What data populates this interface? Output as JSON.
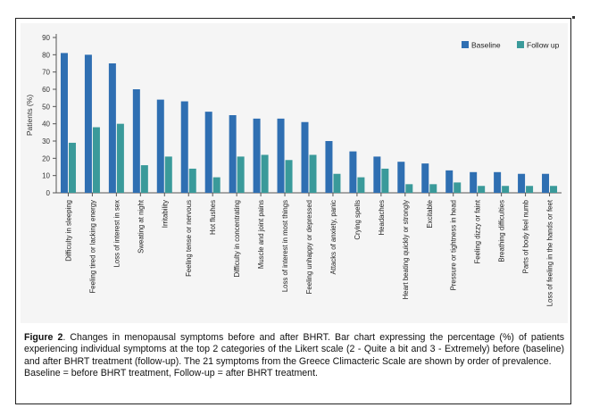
{
  "colors": {
    "baseline": "#2f6fb2",
    "follow_up": "#3a9a9a",
    "panel": "#f5f5f5"
  },
  "chart_data": {
    "type": "bar",
    "ylabel": "Patients (%)",
    "ylim": [
      0,
      90
    ],
    "yticks": [
      0,
      10,
      20,
      30,
      40,
      50,
      60,
      70,
      80,
      90
    ],
    "grid": false,
    "legend_position": "top-right",
    "categories": [
      "Difficulty in sleeping",
      "Feeling tired or lacking energy",
      "Loss of interest in sex",
      "Sweating at night",
      "Irritability",
      "Feeling tense or nervous",
      "Hot flushes",
      "Difficulty in concentrating",
      "Muscle and joint pains",
      "Loss of interest in most things",
      "Feeling unhappy or depressed",
      "Attacks of anxiety, panic",
      "Crying spells",
      "Headaches",
      "Heart beating quickly or strongly",
      "Excitable",
      "Pressure or tightness in head",
      "Feeling dizzy or faint",
      "Breathing difficulties",
      "Parts of body feel numb",
      "Loss of feeling in the hands or feet"
    ],
    "series": [
      {
        "name": "Baseline",
        "values": [
          81,
          80,
          75,
          60,
          54,
          53,
          47,
          45,
          43,
          43,
          41,
          30,
          24,
          21,
          18,
          17,
          13,
          12,
          12,
          11,
          11
        ]
      },
      {
        "name": "Follow up",
        "values": [
          29,
          38,
          40,
          16,
          21,
          14,
          9,
          21,
          22,
          19,
          22,
          11,
          9,
          14,
          5,
          5,
          6,
          4,
          4,
          4,
          4
        ]
      }
    ]
  },
  "caption": {
    "figure_label": "Figure 2",
    "text": ". Changes in menopausal symptoms before and after BHRT. Bar chart expressing the percentage (%) of patients experiencing individual symptoms at the top 2 categories of the Likert scale (2 - Quite a bit and 3 - Extremely) before (baseline) and after BHRT treatment (follow-up). The 21 symptoms from the Greece Climacteric Scale are shown by order of prevalence.",
    "line2": "Baseline = before BHRT treatment, Follow-up = after BHRT treatment."
  }
}
